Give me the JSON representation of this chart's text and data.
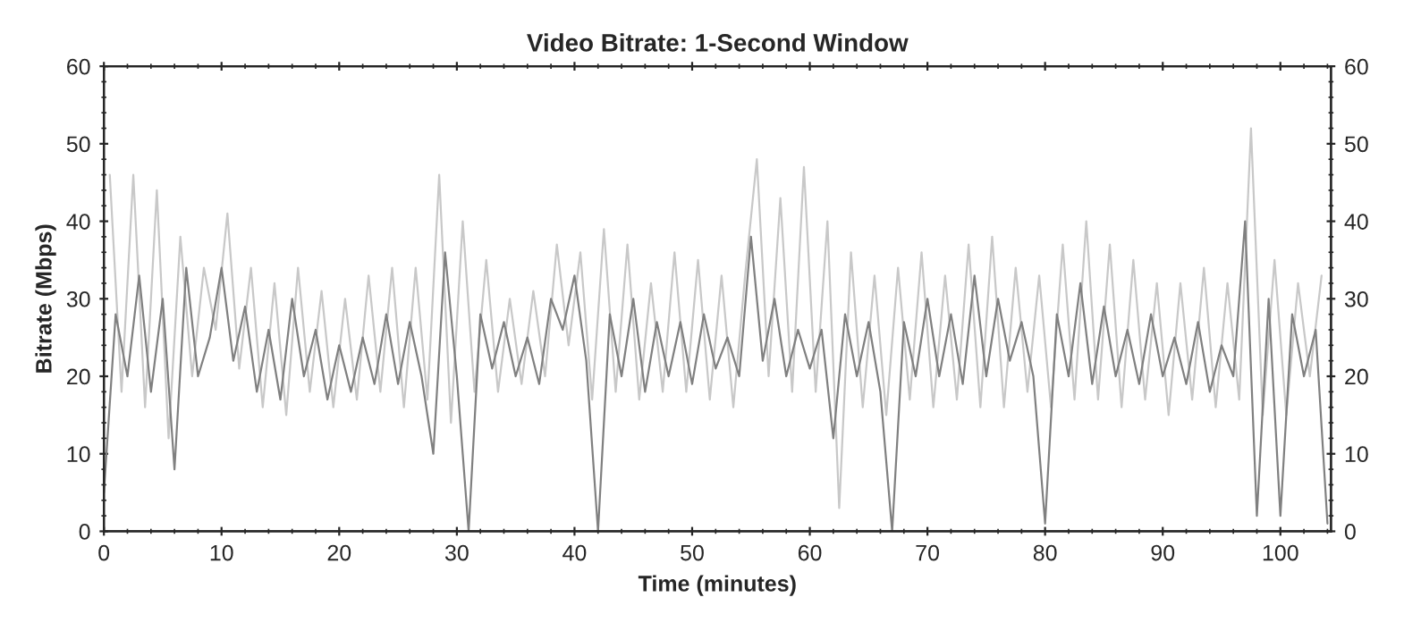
{
  "chart_data": {
    "type": "line",
    "title": "Video Bitrate: 1-Second Window",
    "xlabel": "Time (minutes)",
    "ylabel": "Bitrate (Mbps)",
    "xlim": [
      0,
      104.3
    ],
    "xticks": [
      0,
      10,
      20,
      30,
      40,
      50,
      60,
      70,
      80,
      90,
      100
    ],
    "ylim": [
      0,
      60
    ],
    "yticks": [
      0,
      10,
      20,
      30,
      40,
      50,
      60
    ],
    "y2lim": [
      0,
      60
    ],
    "y2ticks": [
      0,
      10,
      20,
      30,
      40,
      50,
      60
    ],
    "grid": false,
    "legend": false,
    "series": [
      {
        "color": "#c8c8c8",
        "x": [
          0.5,
          1.5,
          2.5,
          3.5,
          4.5,
          5.5,
          6.5,
          7.5,
          8.5,
          9.5,
          10.5,
          11.5,
          12.5,
          13.5,
          14.5,
          15.5,
          16.5,
          17.5,
          18.5,
          19.5,
          20.5,
          21.5,
          22.5,
          23.5,
          24.5,
          25.5,
          26.5,
          27.5,
          28.5,
          29.5,
          30.5,
          31.5,
          32.5,
          33.5,
          34.5,
          35.5,
          36.5,
          37.5,
          38.5,
          39.5,
          40.5,
          41.5,
          42.5,
          43.5,
          44.5,
          45.5,
          46.5,
          47.5,
          48.5,
          49.5,
          50.5,
          51.5,
          52.5,
          53.5,
          54.5,
          55.5,
          56.5,
          57.5,
          58.5,
          59.5,
          60.5,
          61.5,
          62.5,
          63.5,
          64.5,
          65.5,
          66.5,
          67.5,
          68.5,
          69.5,
          70.5,
          71.5,
          72.5,
          73.5,
          74.5,
          75.5,
          76.5,
          77.5,
          78.5,
          79.5,
          80.5,
          81.5,
          82.5,
          83.5,
          84.5,
          85.5,
          86.5,
          87.5,
          88.5,
          89.5,
          90.5,
          91.5,
          92.5,
          93.5,
          94.5,
          95.5,
          96.5,
          97.5,
          98.5,
          99.5,
          100.5,
          101.5,
          102.5,
          103.5
        ],
        "values": [
          46,
          18,
          46,
          16,
          44,
          12,
          38,
          20,
          34,
          26,
          41,
          21,
          34,
          16,
          32,
          15,
          34,
          18,
          31,
          16,
          30,
          17,
          33,
          18,
          34,
          16,
          34,
          17,
          46,
          14,
          40,
          18,
          35,
          18,
          30,
          19,
          31,
          20,
          37,
          24,
          36,
          17,
          39,
          18,
          37,
          17,
          32,
          18,
          36,
          18,
          35,
          17,
          33,
          16,
          33,
          48,
          20,
          43,
          18,
          47,
          18,
          40,
          3,
          36,
          16,
          33,
          15,
          34,
          17,
          36,
          16,
          33,
          17,
          37,
          16,
          38,
          16,
          34,
          18,
          33,
          16,
          37,
          17,
          40,
          17,
          37,
          16,
          35,
          17,
          32,
          15,
          32,
          17,
          34,
          16,
          32,
          17,
          52,
          15,
          35,
          15,
          32,
          20,
          33
        ]
      },
      {
        "color": "#808080",
        "x": [
          0,
          1,
          2,
          3,
          4,
          5,
          6,
          7,
          8,
          9,
          10,
          11,
          12,
          13,
          14,
          15,
          16,
          17,
          18,
          19,
          20,
          21,
          22,
          23,
          24,
          25,
          26,
          27,
          28,
          29,
          30,
          31,
          32,
          33,
          34,
          35,
          36,
          37,
          38,
          39,
          40,
          41,
          42,
          43,
          44,
          45,
          46,
          47,
          48,
          49,
          50,
          51,
          52,
          53,
          54,
          55,
          56,
          57,
          58,
          59,
          60,
          61,
          62,
          63,
          64,
          65,
          66,
          67,
          68,
          69,
          70,
          71,
          72,
          73,
          74,
          75,
          76,
          77,
          78,
          79,
          80,
          81,
          82,
          83,
          84,
          85,
          86,
          87,
          88,
          89,
          90,
          91,
          92,
          93,
          94,
          95,
          96,
          97,
          98,
          99,
          100,
          101,
          102,
          103,
          104
        ],
        "values": [
          5,
          28,
          20,
          33,
          18,
          30,
          8,
          34,
          20,
          25,
          34,
          22,
          29,
          18,
          26,
          17,
          30,
          20,
          26,
          17,
          24,
          18,
          25,
          19,
          28,
          19,
          27,
          20,
          10,
          36,
          20,
          0,
          28,
          21,
          27,
          20,
          25,
          19,
          30,
          26,
          33,
          22,
          0,
          28,
          20,
          30,
          18,
          27,
          20,
          27,
          19,
          28,
          21,
          25,
          20,
          38,
          22,
          30,
          20,
          26,
          21,
          26,
          12,
          28,
          20,
          27,
          18,
          0,
          27,
          20,
          30,
          20,
          28,
          19,
          33,
          20,
          30,
          22,
          27,
          20,
          1,
          28,
          20,
          32,
          19,
          29,
          20,
          26,
          19,
          28,
          20,
          25,
          19,
          27,
          18,
          24,
          20,
          40,
          2,
          30,
          2,
          28,
          20,
          26,
          1
        ]
      }
    ]
  }
}
